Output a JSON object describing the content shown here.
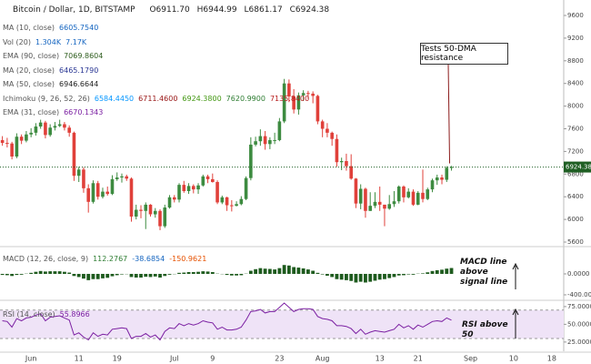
{
  "header": {
    "symbol": "Bitcoin / Dollar, 1D, BITSTAMP",
    "ohlc_labels": [
      "O6911.70",
      "H6944.99",
      "L6861.17",
      "C6924.38"
    ]
  },
  "chart_data": [
    {
      "type": "candlestick",
      "categories": [
        null,
        null,
        null,
        null,
        null,
        null,
        "Jun",
        null,
        null,
        null,
        null,
        null,
        null,
        null,
        null,
        null,
        "11",
        null,
        null,
        null,
        null,
        null,
        null,
        null,
        "19",
        null,
        null,
        null,
        null,
        null,
        null,
        null,
        null,
        null,
        null,
        null,
        "Jul",
        null,
        null,
        null,
        null,
        null,
        null,
        null,
        "9",
        null,
        null,
        null,
        null,
        null,
        null,
        null,
        null,
        null,
        null,
        null,
        null,
        null,
        "23",
        null,
        null,
        null,
        null,
        null,
        null,
        null,
        null,
        "Aug",
        null,
        null,
        null,
        null,
        null,
        null,
        null,
        null,
        null,
        null,
        null,
        "13",
        null,
        null,
        null,
        null,
        null,
        null,
        null,
        "21",
        null,
        null,
        null,
        null,
        null,
        null,
        null,
        null,
        null,
        null,
        "Sep",
        null,
        null,
        null,
        null,
        null,
        null,
        null,
        null,
        "10",
        null,
        null,
        null,
        null,
        null,
        null,
        null,
        "18",
        null,
        null
      ],
      "open": [
        7400,
        7350,
        7340,
        7110,
        7460,
        7390,
        7500,
        7530,
        7640,
        7710,
        7490,
        7620,
        7650,
        7680,
        7620,
        7530,
        6770,
        6880,
        6550,
        6310,
        6640,
        6400,
        6490,
        6450,
        6710,
        6740,
        6760,
        6720,
        6050,
        6170,
        6150,
        6260,
        6090,
        6150,
        5880,
        6210,
        6390,
        6350,
        6610,
        6500,
        6590,
        6530,
        6600,
        6760,
        6710,
        6660,
        6300,
        6390,
        6250,
        6240,
        6270,
        6360,
        6730,
        7320,
        7380,
        7470,
        7330,
        7400,
        7400,
        7730,
        8400,
        8170,
        7940,
        8190,
        8230,
        8220,
        8180,
        7730,
        7600,
        7530,
        7420,
        7010,
        7030,
        6940,
        6720,
        6280,
        6540,
        6150,
        6240,
        6310,
        6260,
        6190,
        6270,
        6320,
        6580,
        6390,
        6490,
        6260,
        6470,
        6360,
        6530,
        6690,
        6740,
        6700,
        6911.7,
        null,
        null,
        null,
        null,
        null,
        null,
        null,
        null,
        null,
        null,
        null,
        null,
        null,
        null,
        null,
        null,
        null,
        null,
        null,
        null,
        null,
        null,
        null
      ],
      "high": [
        7470,
        7440,
        7370,
        7520,
        7500,
        7560,
        7610,
        7700,
        7760,
        7740,
        7680,
        7720,
        7760,
        7720,
        7660,
        7550,
        6930,
        6920,
        6620,
        6690,
        6680,
        6560,
        6580,
        6780,
        6830,
        6810,
        6790,
        6740,
        6260,
        6250,
        6300,
        6270,
        6200,
        6180,
        6260,
        6430,
        6430,
        6640,
        6680,
        6640,
        6620,
        6640,
        6790,
        6790,
        6810,
        6690,
        6420,
        6400,
        6340,
        6320,
        6410,
        6760,
        7450,
        7460,
        7590,
        7560,
        7450,
        7530,
        7790,
        8480,
        8470,
        8300,
        8240,
        8280,
        8270,
        8260,
        8200,
        7760,
        7700,
        7550,
        7500,
        7090,
        7160,
        7150,
        6730,
        6620,
        6560,
        6480,
        6480,
        6580,
        6260,
        6430,
        6500,
        6600,
        6600,
        6550,
        6530,
        6500,
        6880,
        6560,
        6720,
        6790,
        6790,
        6940,
        6944.99,
        null,
        null,
        null,
        null,
        null,
        null,
        null,
        null,
        null,
        null,
        null,
        null,
        null,
        null,
        null,
        null,
        null,
        null,
        null,
        null,
        null,
        null,
        null
      ],
      "low": [
        7300,
        7270,
        7060,
        7080,
        7330,
        7360,
        7450,
        7480,
        7600,
        7430,
        7460,
        7570,
        7630,
        7570,
        7460,
        6680,
        6660,
        6470,
        6120,
        6280,
        6350,
        6370,
        6420,
        6430,
        6680,
        6650,
        6680,
        5960,
        6000,
        6020,
        5830,
        6050,
        6030,
        5810,
        5850,
        6190,
        6300,
        6300,
        6470,
        6450,
        6460,
        6450,
        6580,
        6640,
        6650,
        6270,
        6270,
        6150,
        6140,
        6230,
        6250,
        6340,
        6690,
        7290,
        7300,
        7230,
        7240,
        7330,
        7380,
        7700,
        8070,
        7870,
        7850,
        8090,
        8130,
        8050,
        7680,
        7450,
        7450,
        7300,
        6930,
        6870,
        6860,
        6700,
        6200,
        6180,
        6030,
        6150,
        6200,
        6150,
        5880,
        6170,
        6220,
        6280,
        6300,
        6370,
        6240,
        6250,
        6300,
        6340,
        6480,
        6610,
        6620,
        6660,
        6861.17,
        null,
        null,
        null,
        null,
        null,
        null,
        null,
        null,
        null,
        null,
        null,
        null,
        null,
        null,
        null,
        null,
        null,
        null,
        null,
        null,
        null,
        null,
        null
      ],
      "close": [
        7350,
        7340,
        7110,
        7460,
        7390,
        7500,
        7530,
        7640,
        7710,
        7490,
        7620,
        7650,
        7680,
        7620,
        7530,
        6770,
        6880,
        6550,
        6310,
        6640,
        6400,
        6490,
        6450,
        6710,
        6740,
        6760,
        6720,
        6050,
        6170,
        6150,
        6260,
        6090,
        6150,
        5880,
        6210,
        6390,
        6350,
        6610,
        6500,
        6590,
        6530,
        6600,
        6760,
        6710,
        6660,
        6300,
        6390,
        6250,
        6240,
        6270,
        6360,
        6730,
        7320,
        7380,
        7470,
        7330,
        7400,
        7400,
        7730,
        8400,
        8170,
        7940,
        8190,
        8230,
        8220,
        8180,
        7730,
        7600,
        7530,
        7420,
        7010,
        7030,
        6940,
        6720,
        6280,
        6540,
        6150,
        6240,
        6310,
        6260,
        6190,
        6270,
        6320,
        6580,
        6390,
        6490,
        6260,
        6470,
        6360,
        6530,
        6690,
        6740,
        6700,
        6911.7,
        6924.38,
        null,
        null,
        null,
        null,
        null,
        null,
        null,
        null,
        null,
        null,
        null,
        null,
        null,
        null,
        null,
        null,
        null,
        null,
        null,
        null,
        null,
        null,
        null
      ],
      "up_color": "#3d8b40",
      "down_color": "#e0403a",
      "last_price_color": "#1f5f24",
      "ylim": [
        5536,
        9873
      ],
      "yticks": [
        9600,
        9200,
        8800,
        8400,
        8000,
        7600,
        7200,
        6800,
        6400,
        6000,
        5600
      ],
      "indicators": [
        {
          "name": "MA (10, close)",
          "values": [
            "6605.7540"
          ],
          "colors": [
            "#1565c0"
          ]
        },
        {
          "name": "Vol (20)",
          "values": [
            "1.304K",
            "7.17K"
          ],
          "colors": [
            "#1565c0",
            "#1565c0"
          ]
        },
        {
          "name": "EMA (90, close)",
          "values": [
            "7069.8604"
          ],
          "colors": [
            "#2e5d1e"
          ]
        },
        {
          "name": "MA (20, close)",
          "values": [
            "6465.1790"
          ],
          "colors": [
            "#283593"
          ]
        },
        {
          "name": "MA (50, close)",
          "values": [
            "6946.6644"
          ],
          "colors": [
            "#222222"
          ]
        },
        {
          "name": "Ichimoku (9, 26, 52, 26)",
          "values": [
            "6584.4450",
            "6711.4600",
            "6924.3800",
            "7620.9900",
            "7135.8400"
          ],
          "colors": [
            "#0496ff",
            "#991515",
            "#459915",
            "#2e7d32",
            "#b71c1c"
          ]
        },
        {
          "name": "EMA (31, close)",
          "values": [
            "6670.1343"
          ],
          "colors": [
            "#7b1fa2"
          ]
        }
      ],
      "annotation": "Tests 50-DMA resistance"
    },
    {
      "type": "bar",
      "title": "MACD (12, 26, close, 9)",
      "legend_values": [
        "112.2767",
        "-38.6854",
        "-150.9621"
      ],
      "legend_colors": [
        "#2e7d32",
        "#1565c0",
        "#e65100"
      ],
      "values": [
        -20,
        -25,
        -40,
        -20,
        -15,
        5,
        20,
        40,
        55,
        45,
        50,
        50,
        50,
        40,
        25,
        -40,
        -60,
        -90,
        -120,
        -100,
        -100,
        -85,
        -75,
        -45,
        -25,
        -10,
        -5,
        -60,
        -70,
        -70,
        -55,
        -60,
        -50,
        -70,
        -40,
        -15,
        -5,
        20,
        25,
        35,
        35,
        40,
        50,
        45,
        35,
        5,
        -5,
        -20,
        -30,
        -30,
        -25,
        5,
        60,
        90,
        110,
        100,
        95,
        85,
        110,
        170,
        160,
        130,
        120,
        105,
        85,
        60,
        20,
        -10,
        -35,
        -60,
        -100,
        -110,
        -120,
        -135,
        -165,
        -150,
        -165,
        -150,
        -130,
        -110,
        -100,
        -80,
        -60,
        -30,
        -25,
        -10,
        -15,
        5,
        10,
        30,
        55,
        70,
        80,
        100,
        112.2767,
        null,
        null,
        null,
        null,
        null,
        null,
        null,
        null,
        null,
        null,
        null,
        null,
        null,
        null,
        null,
        null,
        null,
        null,
        null,
        null,
        null,
        null,
        null
      ],
      "color": "#1e5b1e",
      "ylim": [
        -470,
        504
      ],
      "yticks": [
        {
          "value": 0,
          "label": "0.0000"
        },
        {
          "value": -400,
          "label": "-400.0000"
        }
      ],
      "annotation": "MACD line above signal line"
    },
    {
      "type": "line",
      "title": "RSI (14, close)",
      "legend_values": [
        "55.8966"
      ],
      "legend_colors": [
        "#7b1fa2"
      ],
      "values": [
        55,
        54,
        46,
        58,
        55,
        59,
        60,
        63,
        65,
        55,
        60,
        61,
        62,
        59,
        56,
        35,
        38,
        32,
        28,
        38,
        33,
        36,
        35,
        43,
        44,
        45,
        44,
        30,
        33,
        33,
        37,
        32,
        35,
        28,
        40,
        45,
        44,
        51,
        48,
        51,
        49,
        51,
        55,
        53,
        52,
        43,
        46,
        42,
        42,
        43,
        46,
        56,
        68,
        69,
        71,
        66,
        68,
        68,
        74,
        80,
        74,
        68,
        71,
        72,
        72,
        71,
        61,
        58,
        57,
        55,
        48,
        48,
        47,
        44,
        37,
        43,
        36,
        39,
        41,
        40,
        39,
        41,
        43,
        50,
        45,
        48,
        43,
        49,
        46,
        50,
        54,
        55,
        54,
        59,
        55.8966,
        null,
        null,
        null,
        null,
        null,
        null,
        null,
        null,
        null,
        null,
        null,
        null,
        null,
        null,
        null,
        null,
        null,
        null,
        null,
        null,
        null,
        null,
        null
      ],
      "color": "#7b1fa2",
      "bands": [
        30,
        70
      ],
      "band_color": "#efe3f7",
      "ylim": [
        12,
        80
      ],
      "yticks": [
        {
          "value": 75,
          "label": "75.0000"
        },
        {
          "value": 50,
          "label": "50.0000"
        },
        {
          "value": 25,
          "label": "25.0000"
        }
      ],
      "annotation": "RSI above 50"
    }
  ]
}
